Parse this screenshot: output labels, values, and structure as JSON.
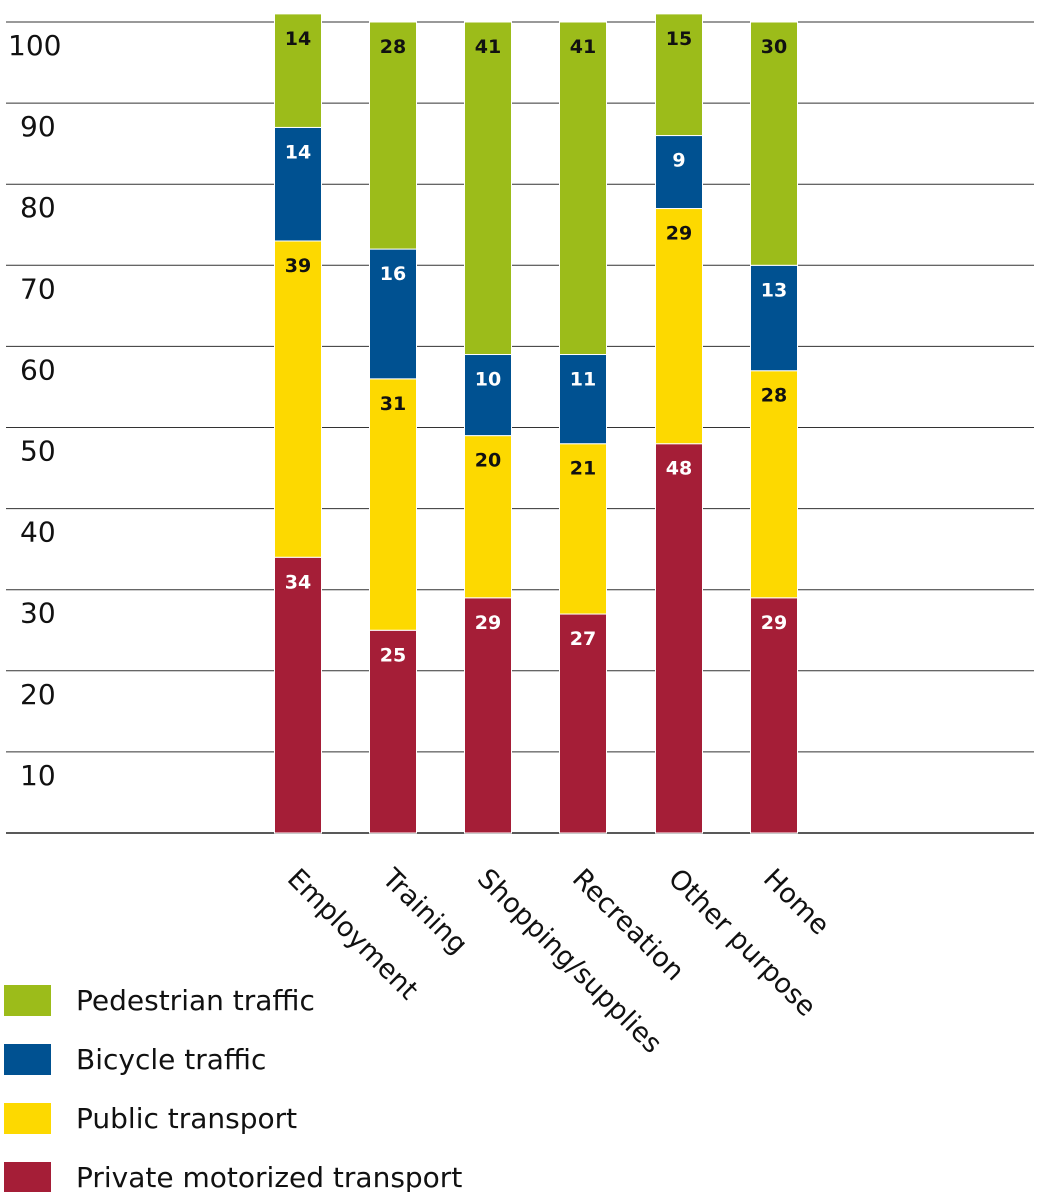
{
  "chart_data": {
    "type": "bar",
    "stacked": true,
    "categories": [
      "Employment",
      "Training",
      "Shopping/supplies",
      "Recreation",
      "Other purpose",
      "Home"
    ],
    "series": [
      {
        "name": "Private motorized transport",
        "color": "#a51e37",
        "label_color": "#ffffff",
        "values": [
          34,
          25,
          29,
          27,
          48,
          29
        ]
      },
      {
        "name": "Public transport",
        "color": "#fdd900",
        "label_color": "#111111",
        "values": [
          39,
          31,
          20,
          21,
          29,
          28
        ]
      },
      {
        "name": "Bicycle traffic",
        "color": "#005191",
        "label_color": "#ffffff",
        "values": [
          14,
          16,
          10,
          11,
          9,
          13
        ]
      },
      {
        "name": "Pedestrian traffic",
        "color": "#9cbc1a",
        "label_color": "#111111",
        "values": [
          14,
          28,
          41,
          41,
          15,
          30
        ]
      }
    ],
    "legend_order": [
      "Pedestrian traffic",
      "Bicycle traffic",
      "Public transport",
      "Private motorized transport"
    ],
    "y_ticks": [
      "10",
      "20",
      "30",
      "40",
      "50",
      "60",
      "70",
      "80",
      "90",
      "100"
    ],
    "ylim": [
      0,
      100
    ],
    "grid": true,
    "legend_position": "bottom-left",
    "title": "",
    "xlabel": "",
    "ylabel": ""
  }
}
